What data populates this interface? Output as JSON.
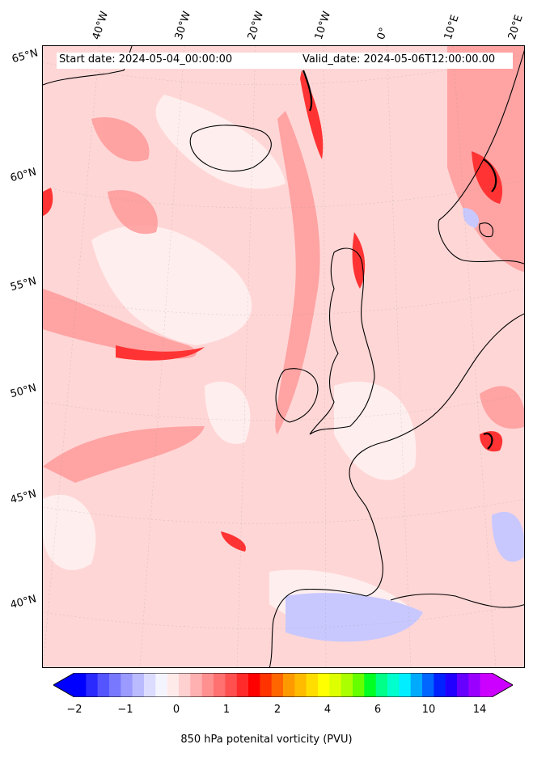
{
  "header": {
    "start_date": "Start date: 2024-05-04_00:00:00",
    "valid_date": "Valid_date: 2024-05-06T12:00:00.00"
  },
  "longitude_labels": [
    "40°W",
    "30°W",
    "20°W",
    "10°W",
    "0°",
    "10°E",
    "20°E"
  ],
  "latitude_labels": [
    "65°N",
    "60°N",
    "55°N",
    "50°N",
    "45°N",
    "40°N"
  ],
  "colorbar": {
    "label": "850 hPa potenital vorticity (PVU)",
    "tick_labels": [
      "−2",
      "−1",
      "0",
      "1",
      "2",
      "4",
      "6",
      "10",
      "14"
    ],
    "colors": [
      "#0000ff",
      "#2a2aff",
      "#5555ff",
      "#7878ff",
      "#9a9aff",
      "#babaff",
      "#dcdcff",
      "#f4f4ff",
      "#ffeaea",
      "#ffd0d0",
      "#ffb0b0",
      "#ff9090",
      "#ff7070",
      "#ff5050",
      "#ff2a2a",
      "#ff0000",
      "#ff3300",
      "#ff6600",
      "#ff9900",
      "#ffbb00",
      "#ffdd00",
      "#ffff00",
      "#ddff00",
      "#aaff00",
      "#66ff00",
      "#00ff22",
      "#00ff88",
      "#00ffcc",
      "#00eeff",
      "#00aaff",
      "#0066ff",
      "#0022ff",
      "#2200ff",
      "#6600ff",
      "#9900ff",
      "#cc00ff"
    ]
  },
  "colors": {
    "background_pv": "#ffd6d6",
    "low_pv": "#ffeeee",
    "mid_pv": "#ff9a9a",
    "high_pv": "#ff3333",
    "negative_pv": "#c8c8ff",
    "coastline": "#000000"
  }
}
